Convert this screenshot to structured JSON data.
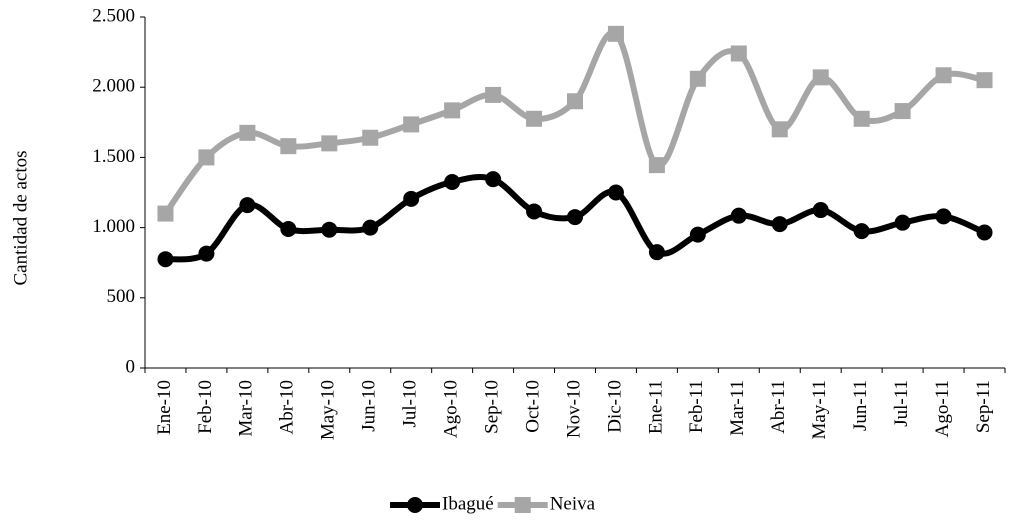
{
  "chart_data": {
    "type": "line",
    "y_label": "Cantidad de actos",
    "categories": [
      "Ene-10",
      "Feb-10",
      "Mar-10",
      "Abr-10",
      "May-10",
      "Jun-10",
      "Jul-10",
      "Ago-10",
      "Sep-10",
      "Oct-10",
      "Nov-10",
      "Dic-10",
      "Ene-11",
      "Feb-11",
      "Mar-11",
      "Abr-11",
      "May-11",
      "Jun-11",
      "Jul-11",
      "Ago-11",
      "Sep-11"
    ],
    "series": [
      {
        "name": "Ibagué",
        "color": "#000000",
        "marker": "circle",
        "values": [
          775,
          815,
          1160,
          990,
          985,
          1000,
          1205,
          1325,
          1345,
          1115,
          1075,
          1250,
          825,
          950,
          1085,
          1025,
          1125,
          975,
          1035,
          1080,
          965
        ]
      },
      {
        "name": "Neiva",
        "color": "#a6a6a6",
        "marker": "square",
        "values": [
          1100,
          1500,
          1675,
          1580,
          1600,
          1640,
          1735,
          1835,
          1945,
          1775,
          1900,
          2380,
          1445,
          2060,
          2240,
          1700,
          2070,
          1775,
          1830,
          2085,
          2050
        ]
      }
    ],
    "ylim": [
      0,
      2500
    ],
    "yticks": [
      0,
      500,
      {
        "value": 1000,
        "label": "1.000"
      },
      {
        "value": 1500,
        "label": "1.500"
      },
      {
        "value": 2000,
        "label": "2.000"
      },
      {
        "value": 2500,
        "label": "2.500"
      }
    ],
    "smooth": true,
    "legend": "bottom"
  }
}
